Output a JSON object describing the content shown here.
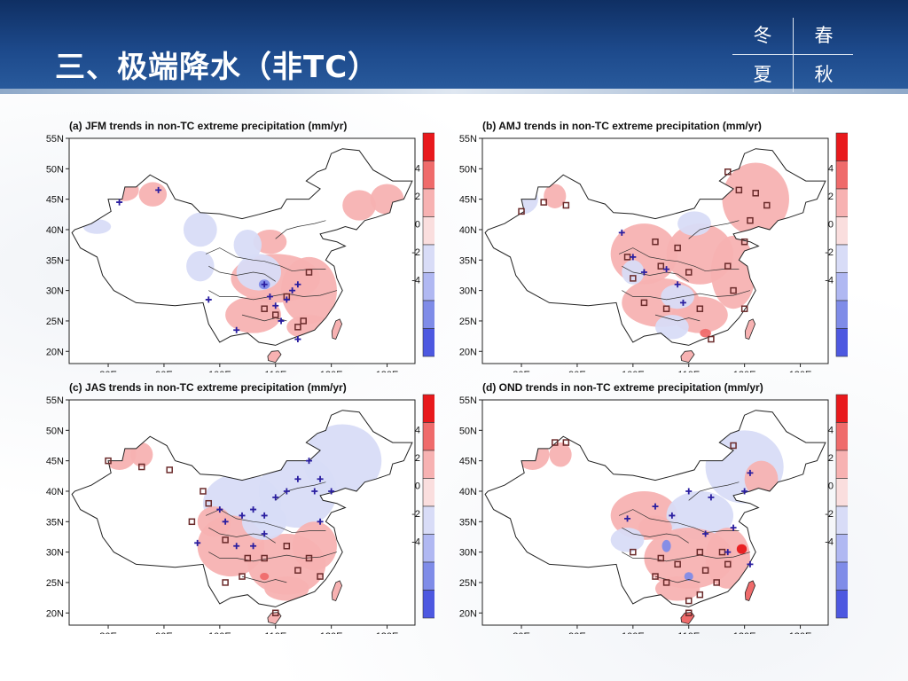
{
  "header": {
    "title": "三、极端降水（非TC）",
    "seasons": [
      "冬",
      "春",
      "夏",
      "秋"
    ]
  },
  "panels": [
    {
      "title": "(a) JFM trends in non-TC extreme precipitation (mm/yr)"
    },
    {
      "title": "(b) AMJ trends in non-TC extreme precipitation (mm/yr)"
    },
    {
      "title": "(c) JAS trends in non-TC extreme precipitation (mm/yr)"
    },
    {
      "title": "(d) OND trends in non-TC extreme precipitation (mm/yr)"
    }
  ],
  "axes": {
    "lat_ticks": [
      "55N",
      "50N",
      "45N",
      "40N",
      "35N",
      "30N",
      "25N",
      "20N"
    ],
    "lon_ticks": [
      "80E",
      "90E",
      "100E",
      "110E",
      "120E",
      "130E"
    ]
  },
  "colorbar": {
    "labels": [
      "4",
      "2",
      "0",
      "-2",
      "-4"
    ],
    "colors": [
      "#e8191c",
      "#ef6b6b",
      "#f7b2b2",
      "#fadede",
      "#d8dcf7",
      "#b0b8f2",
      "#7f8ce8",
      "#4d58e0"
    ]
  }
}
